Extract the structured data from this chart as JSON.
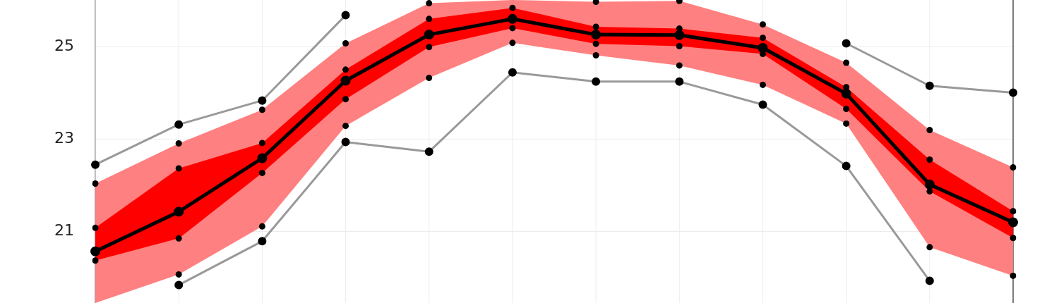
{
  "chart_data": {
    "type": "line",
    "categories": [
      null,
      null,
      null,
      null,
      null,
      null,
      null,
      null,
      null,
      null,
      null,
      null
    ],
    "series": [
      {
        "type": "line",
        "color": "#999999",
        "values": [
          22.45,
          23.32,
          23.84,
          25.69,
          null,
          null,
          null,
          null,
          null,
          25.08,
          24.16,
          24.01
        ]
      },
      {
        "type": "line",
        "color": "#ff8080",
        "values": [
          null,
          null,
          null,
          null,
          null,
          null,
          null,
          null,
          null,
          null,
          null,
          null
        ],
        "upper": [
          22.04,
          22.91,
          23.64,
          25.08,
          25.95,
          26.02,
          25.98,
          26.0,
          25.49,
          24.66,
          23.2,
          22.39
        ],
        "lower": [
          19.45,
          20.07,
          21.11,
          23.29,
          24.33,
          25.09,
          24.82,
          24.6,
          24.18,
          23.34,
          20.66,
          20.04
        ]
      },
      {
        "type": "line",
        "color": "#ff0000",
        "values": [
          null,
          null,
          null,
          null,
          null,
          null,
          null,
          null,
          null,
          null,
          null,
          null
        ],
        "upper": [
          21.08,
          22.37,
          22.92,
          24.51,
          25.61,
          25.85,
          25.44,
          25.4,
          25.2,
          24.13,
          22.56,
          21.44
        ],
        "lower": [
          20.37,
          20.85,
          22.27,
          23.87,
          25.0,
          25.41,
          25.07,
          25.02,
          24.85,
          23.66,
          21.87,
          20.86
        ]
      },
      {
        "type": "line",
        "color": "#000000",
        "values": [
          20.57,
          21.43,
          22.59,
          24.27,
          25.27,
          25.61,
          25.27,
          25.26,
          24.98,
          23.99,
          22.02,
          21.2
        ]
      },
      {
        "type": "scatter",
        "color": "#000000",
        "values": [
          22.04,
          22.91,
          23.64,
          25.08,
          25.95,
          null,
          25.98,
          26.0,
          25.49,
          24.66,
          23.2,
          22.39
        ]
      },
      {
        "type": "scatter",
        "color": "#000000",
        "values": [
          null,
          20.07,
          21.11,
          23.29,
          24.33,
          25.09,
          24.82,
          24.6,
          24.18,
          23.34,
          20.66,
          20.04
        ]
      },
      {
        "type": "scatter",
        "color": "#000000",
        "values": [
          21.08,
          22.37,
          22.92,
          24.51,
          25.61,
          25.85,
          25.44,
          25.4,
          25.2,
          24.13,
          22.56,
          21.44
        ]
      },
      {
        "type": "scatter",
        "color": "#000000",
        "values": [
          20.37,
          20.85,
          22.27,
          23.87,
          25.0,
          25.41,
          25.07,
          25.02,
          24.85,
          23.66,
          21.87,
          20.86
        ]
      },
      {
        "type": "line",
        "color": "#999999",
        "values": [
          null,
          19.84,
          20.79,
          22.94,
          22.73,
          24.45,
          24.25,
          24.25,
          23.75,
          22.42,
          19.93,
          null
        ]
      }
    ],
    "ylim": [
      19.45,
      26.02
    ],
    "yticks": [
      21,
      23,
      25
    ],
    "grid": true,
    "marker": "circle",
    "legend": false
  }
}
